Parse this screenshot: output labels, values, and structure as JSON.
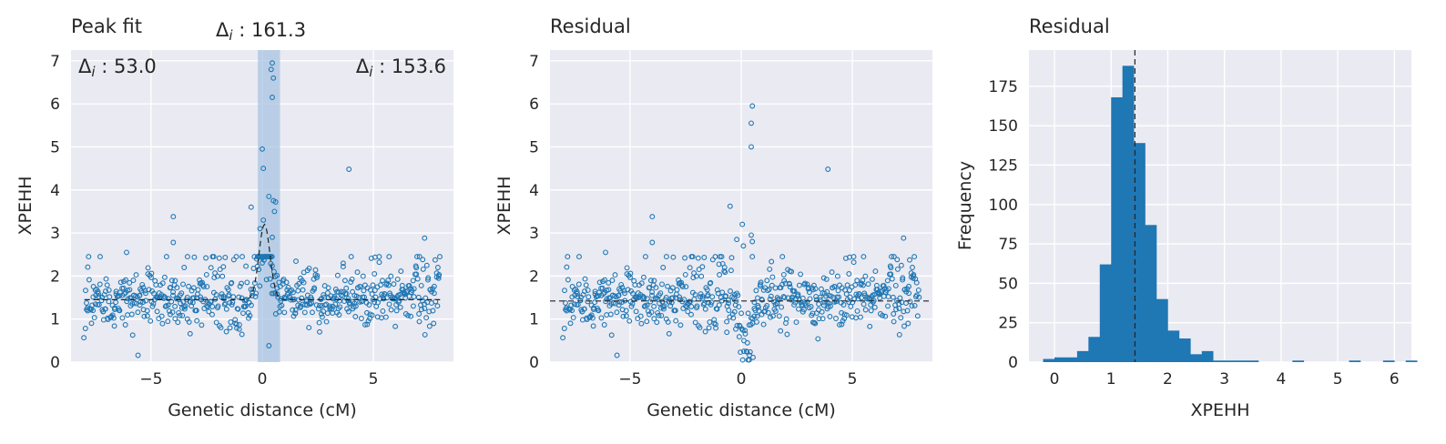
{
  "chart_data": [
    {
      "type": "scatter",
      "title": "Peak fit",
      "xlabel": "Genetic distance (cM)",
      "ylabel": "XPEHH",
      "xlim": [
        -8.6,
        8.6
      ],
      "ylim": [
        0,
        7.25
      ],
      "xticks": [
        -5,
        0,
        5
      ],
      "xtick_labels": [
        "−5",
        "0",
        "5"
      ],
      "yticks": [
        0,
        1,
        2,
        3,
        4,
        5,
        6,
        7
      ],
      "grid": true,
      "point_color": "#1f77b4",
      "shade_color": "#a8c4e2",
      "shaded_region": [
        -0.2,
        0.8
      ],
      "annotations": [
        {
          "prefix": "Δ",
          "sub": "i",
          "value": " : 161.3",
          "position": "top-center"
        },
        {
          "prefix": "Δ",
          "sub": "i",
          "value": " : 53.0",
          "position": "top-left"
        },
        {
          "prefix": "Δ",
          "sub": "i",
          "value": " : 153.6",
          "position": "top-right"
        }
      ],
      "baseline": 1.45,
      "peak": {
        "center": 0.1,
        "height": 1.75,
        "width": 0.35
      },
      "highlight_points": [
        {
          "x": 0.45,
          "y": 6.95
        },
        {
          "x": 0.4,
          "y": 6.8
        },
        {
          "x": 0.5,
          "y": 6.6
        },
        {
          "x": 0.45,
          "y": 6.15
        },
        {
          "x": 0.0,
          "y": 4.95
        },
        {
          "x": 0.05,
          "y": 4.5
        },
        {
          "x": 3.9,
          "y": 4.48
        },
        {
          "x": -4.0,
          "y": 3.38
        },
        {
          "x": 0.3,
          "y": 3.85
        },
        {
          "x": 0.5,
          "y": 3.75
        },
        {
          "x": 0.6,
          "y": 3.72
        },
        {
          "x": 0.55,
          "y": 3.5
        },
        {
          "x": -0.1,
          "y": 3.1
        },
        {
          "x": 0.05,
          "y": 3.3
        },
        {
          "x": -0.5,
          "y": 3.6
        },
        {
          "x": 7.3,
          "y": 2.88
        },
        {
          "x": -4.0,
          "y": 2.78
        },
        {
          "x": 0.45,
          "y": 2.9
        },
        {
          "x": -6.1,
          "y": 2.55
        },
        {
          "x": 0.3,
          "y": 0.38
        }
      ]
    },
    {
      "type": "scatter",
      "title": "Residual",
      "xlabel": "Genetic distance (cM)",
      "ylabel": "XPEHH",
      "xlim": [
        -8.6,
        8.6
      ],
      "ylim": [
        0,
        7.25
      ],
      "xticks": [
        -5,
        0,
        5
      ],
      "xtick_labels": [
        "−5",
        "0",
        "5"
      ],
      "yticks": [
        0,
        1,
        2,
        3,
        4,
        5,
        6,
        7
      ],
      "grid": true,
      "point_color": "#1f77b4",
      "hline": 1.42,
      "baseline": 1.45,
      "dip": {
        "center": 0.2,
        "depth": 1.3,
        "width": 0.4
      },
      "highlight_points": [
        {
          "x": 0.5,
          "y": 5.95
        },
        {
          "x": 0.45,
          "y": 5.55
        },
        {
          "x": 0.45,
          "y": 5.0
        },
        {
          "x": 3.9,
          "y": 4.48
        },
        {
          "x": -0.5,
          "y": 3.62
        },
        {
          "x": -4.0,
          "y": 3.38
        },
        {
          "x": 0.05,
          "y": 3.2
        },
        {
          "x": 0.45,
          "y": 2.95
        },
        {
          "x": -0.2,
          "y": 2.85
        },
        {
          "x": 7.3,
          "y": 2.88
        },
        {
          "x": -4.0,
          "y": 2.78
        },
        {
          "x": 0.5,
          "y": 2.8
        },
        {
          "x": 0.1,
          "y": 2.7
        },
        {
          "x": -6.1,
          "y": 2.55
        },
        {
          "x": 0.5,
          "y": 2.45
        }
      ]
    },
    {
      "type": "bar",
      "title": "Residual",
      "xlabel": "XPEHH",
      "ylabel": "Frequency",
      "xlim": [
        -0.45,
        6.3
      ],
      "ylim": [
        0,
        198
      ],
      "xticks": [
        0,
        1,
        2,
        3,
        4,
        5,
        6
      ],
      "yticks": [
        0,
        25,
        50,
        75,
        100,
        125,
        150,
        175
      ],
      "grid": true,
      "bar_color": "#1f77b4",
      "vline": 1.42,
      "bin_start": -0.2,
      "bin_width": 0.2,
      "values": [
        2,
        3,
        3,
        7,
        16,
        62,
        168,
        188,
        139,
        87,
        40,
        20,
        15,
        5,
        7,
        1,
        1,
        1,
        1,
        0,
        0,
        0,
        1,
        0,
        0,
        0,
        0,
        1,
        0,
        0,
        1,
        0,
        1
      ]
    }
  ]
}
